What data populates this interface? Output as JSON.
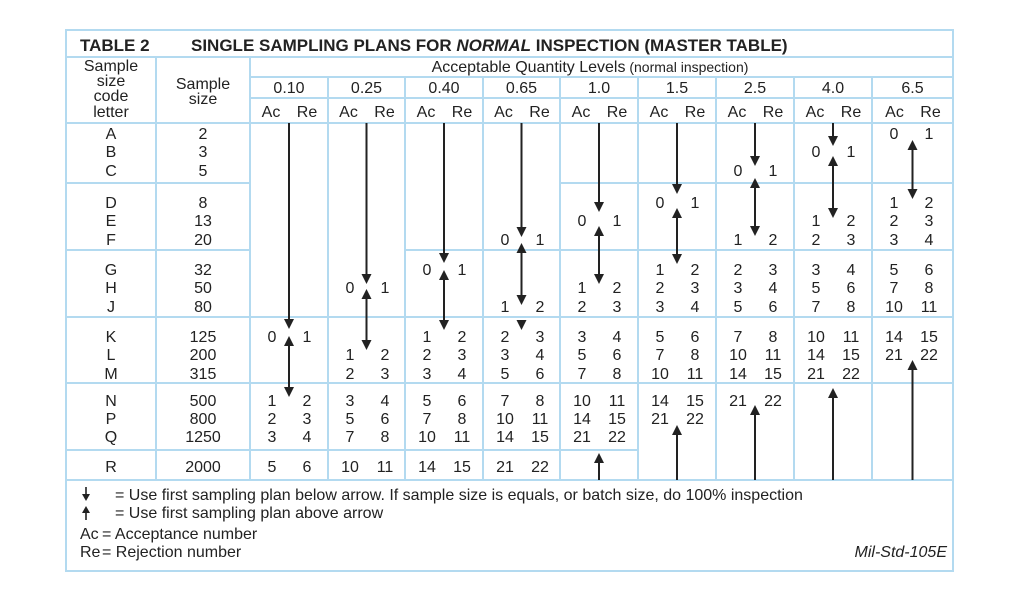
{
  "title": {
    "table_no": "TABLE 2",
    "part1": "SINGLE SAMPLING PLANS FOR ",
    "part_italic": "NORMAL",
    "part2": " INSPECTION (MASTER TABLE)"
  },
  "headers": {
    "code_letter": [
      "Sample",
      "size",
      "code",
      "letter"
    ],
    "sample_size": [
      "Sample",
      "size"
    ],
    "aql_group": "Acceptable Quantity Levels",
    "aql_group_note": " (normal inspection)",
    "ac": "Ac",
    "re": "Re"
  },
  "rows": [
    {
      "letter": "A",
      "size": "2"
    },
    {
      "letter": "B",
      "size": "3"
    },
    {
      "letter": "C",
      "size": "5"
    },
    {
      "letter": "D",
      "size": "8"
    },
    {
      "letter": "E",
      "size": "13"
    },
    {
      "letter": "F",
      "size": "20"
    },
    {
      "letter": "G",
      "size": "32"
    },
    {
      "letter": "H",
      "size": "50"
    },
    {
      "letter": "J",
      "size": "80"
    },
    {
      "letter": "K",
      "size": "125"
    },
    {
      "letter": "L",
      "size": "200"
    },
    {
      "letter": "M",
      "size": "315"
    },
    {
      "letter": "N",
      "size": "500"
    },
    {
      "letter": "P",
      "size": "800"
    },
    {
      "letter": "Q",
      "size": "1250"
    },
    {
      "letter": "R",
      "size": "2000"
    }
  ],
  "columns": [
    {
      "aql": "0.10",
      "cells": {
        "K": [
          "0",
          "1"
        ],
        "N": [
          "1",
          "2"
        ],
        "P": [
          "2",
          "3"
        ],
        "Q": [
          "3",
          "4"
        ],
        "R": [
          "5",
          "6"
        ]
      }
    },
    {
      "aql": "0.25",
      "cells": {
        "H": [
          "0",
          "1"
        ],
        "L": [
          "1",
          "2"
        ],
        "M": [
          "2",
          "3"
        ],
        "N": [
          "3",
          "4"
        ],
        "P": [
          "5",
          "6"
        ],
        "Q": [
          "7",
          "8"
        ],
        "R": [
          "10",
          "11"
        ]
      }
    },
    {
      "aql": "0.40",
      "cells": {
        "G": [
          "0",
          "1"
        ],
        "K": [
          "1",
          "2"
        ],
        "L": [
          "2",
          "3"
        ],
        "M": [
          "3",
          "4"
        ],
        "N": [
          "5",
          "6"
        ],
        "P": [
          "7",
          "8"
        ],
        "Q": [
          "10",
          "11"
        ],
        "R": [
          "14",
          "15"
        ]
      }
    },
    {
      "aql": "0.65",
      "cells": {
        "F": [
          "0",
          "1"
        ],
        "J": [
          "1",
          "2"
        ],
        "K": [
          "2",
          "3"
        ],
        "L": [
          "3",
          "4"
        ],
        "M": [
          "5",
          "6"
        ],
        "N": [
          "7",
          "8"
        ],
        "P": [
          "10",
          "11"
        ],
        "Q": [
          "14",
          "15"
        ],
        "R": [
          "21",
          "22"
        ]
      }
    },
    {
      "aql": "1.0",
      "cells": {
        "E": [
          "0",
          "1"
        ],
        "H": [
          "1",
          "2"
        ],
        "J": [
          "2",
          "3"
        ],
        "K": [
          "3",
          "4"
        ],
        "L": [
          "5",
          "6"
        ],
        "M": [
          "7",
          "8"
        ],
        "N": [
          "10",
          "11"
        ],
        "P": [
          "14",
          "15"
        ],
        "Q": [
          "21",
          "22"
        ]
      }
    },
    {
      "aql": "1.5",
      "cells": {
        "D": [
          "0",
          "1"
        ],
        "G": [
          "1",
          "2"
        ],
        "H": [
          "2",
          "3"
        ],
        "J": [
          "3",
          "4"
        ],
        "K": [
          "5",
          "6"
        ],
        "L": [
          "7",
          "8"
        ],
        "M": [
          "10",
          "11"
        ],
        "N": [
          "14",
          "15"
        ],
        "P": [
          "21",
          "22"
        ]
      }
    },
    {
      "aql": "2.5",
      "cells": {
        "C": [
          "0",
          "1"
        ],
        "F": [
          "1",
          "2"
        ],
        "G": [
          "2",
          "3"
        ],
        "H": [
          "3",
          "4"
        ],
        "J": [
          "5",
          "6"
        ],
        "K": [
          "7",
          "8"
        ],
        "L": [
          "10",
          "11"
        ],
        "M": [
          "14",
          "15"
        ],
        "N": [
          "21",
          "22"
        ]
      }
    },
    {
      "aql": "4.0",
      "cells": {
        "B": [
          "0",
          "1"
        ],
        "E": [
          "1",
          "2"
        ],
        "F": [
          "2",
          "3"
        ],
        "G": [
          "3",
          "4"
        ],
        "H": [
          "5",
          "6"
        ],
        "J": [
          "7",
          "8"
        ],
        "K": [
          "10",
          "11"
        ],
        "L": [
          "14",
          "15"
        ],
        "M": [
          "21",
          "22"
        ]
      }
    },
    {
      "aql": "6.5",
      "cells": {
        "A": [
          "0",
          "1"
        ],
        "D": [
          "1",
          "2"
        ],
        "E": [
          "2",
          "3"
        ],
        "F": [
          "3",
          "4"
        ],
        "G": [
          "5",
          "6"
        ],
        "H": [
          "7",
          "8"
        ],
        "J": [
          "10",
          "11"
        ],
        "K": [
          "14",
          "15"
        ],
        "L": [
          "21",
          "22"
        ]
      }
    }
  ],
  "legend": [
    {
      "symbol": "arrow-down-icon",
      "text": "= Use first sampling plan below arrow. If sample size is equals, or batch size, do 100% inspection"
    },
    {
      "symbol": "arrow-up-icon",
      "text": "= Use first sampling plan above arrow"
    },
    {
      "symbol": "Ac",
      "text": "= Acceptance number"
    },
    {
      "symbol": "Re",
      "text": "= Rejection number"
    }
  ],
  "source": "Mil-Std-105E",
  "colors": {
    "grid": "#b3daf0",
    "text": "#222222"
  }
}
